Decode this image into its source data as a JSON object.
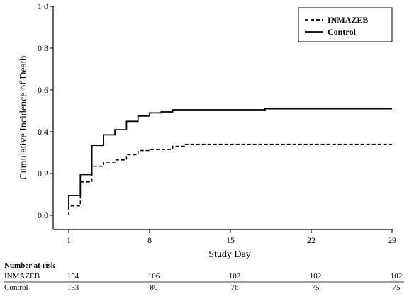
{
  "chart_data": {
    "type": "line",
    "xlabel": "Study Day",
    "ylabel": "Cumulative Incidence of Death",
    "xlim": [
      1,
      29
    ],
    "ylim": [
      0,
      1.0
    ],
    "x_ticks": [
      1,
      8,
      15,
      22,
      29
    ],
    "x_tick_labels": [
      "1",
      "8",
      "15",
      "22",
      "29"
    ],
    "y_ticks": [
      0.0,
      0.2,
      0.4,
      0.6,
      0.8,
      1.0
    ],
    "y_tick_labels": [
      "0.0",
      "0.2",
      "0.4",
      "0.6",
      "0.8",
      "1.0"
    ],
    "legend_position": "top-right",
    "grid": false,
    "series": [
      {
        "name": "INMAZEB",
        "line_style": "dashed",
        "color": "#000000",
        "steps": [
          [
            1,
            0.0
          ],
          [
            1,
            0.045
          ],
          [
            2,
            0.045
          ],
          [
            2,
            0.16
          ],
          [
            3,
            0.16
          ],
          [
            3,
            0.235
          ],
          [
            4,
            0.235
          ],
          [
            4,
            0.255
          ],
          [
            5,
            0.255
          ],
          [
            5,
            0.265
          ],
          [
            6,
            0.265
          ],
          [
            6,
            0.29
          ],
          [
            7,
            0.29
          ],
          [
            7,
            0.31
          ],
          [
            8,
            0.31
          ],
          [
            8,
            0.315
          ],
          [
            10,
            0.315
          ],
          [
            10,
            0.33
          ],
          [
            11,
            0.33
          ],
          [
            11,
            0.34
          ],
          [
            29,
            0.34
          ]
        ]
      },
      {
        "name": "Control",
        "line_style": "solid",
        "color": "#000000",
        "steps": [
          [
            1,
            0.03
          ],
          [
            1,
            0.095
          ],
          [
            2,
            0.095
          ],
          [
            2,
            0.195
          ],
          [
            3,
            0.195
          ],
          [
            3,
            0.335
          ],
          [
            4,
            0.335
          ],
          [
            4,
            0.385
          ],
          [
            5,
            0.385
          ],
          [
            5,
            0.41
          ],
          [
            6,
            0.41
          ],
          [
            6,
            0.45
          ],
          [
            7,
            0.45
          ],
          [
            7,
            0.475
          ],
          [
            8,
            0.475
          ],
          [
            8,
            0.49
          ],
          [
            9,
            0.49
          ],
          [
            9,
            0.495
          ],
          [
            10,
            0.495
          ],
          [
            10,
            0.505
          ],
          [
            18,
            0.505
          ],
          [
            18,
            0.51
          ],
          [
            29,
            0.51
          ]
        ]
      }
    ]
  },
  "risk_table": {
    "title": "Number at risk",
    "days": [
      1,
      8,
      15,
      22,
      29
    ],
    "rows": [
      {
        "label": "INMAZEB",
        "values": [
          "154",
          "106",
          "102",
          "102",
          "102"
        ]
      },
      {
        "label": "Control",
        "values": [
          "153",
          "80",
          "76",
          "75",
          "75"
        ]
      }
    ]
  }
}
